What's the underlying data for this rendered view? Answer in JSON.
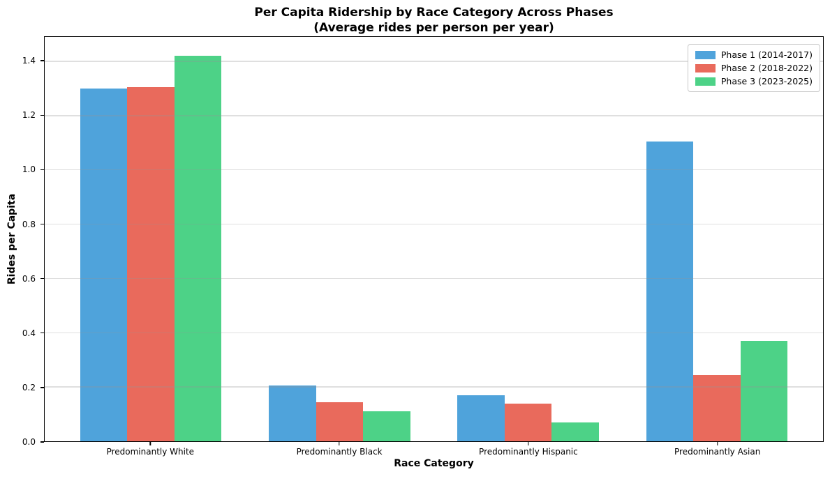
{
  "chart_data": {
    "type": "bar",
    "title": "Per Capita Ridership by Race Category Across Phases",
    "subtitle": "(Average rides per person per year)",
    "xlabel": "Race Category",
    "ylabel": "Rides per Capita",
    "categories": [
      "Predominantly White",
      "Predominantly Black",
      "Predominantly Hispanic",
      "Predominantly Asian"
    ],
    "series": [
      {
        "name": "Phase 1 (2014-2017)",
        "color": "#4fa3db",
        "values": [
          1.3,
          0.205,
          0.17,
          1.105
        ]
      },
      {
        "name": "Phase 2 (2018-2022)",
        "color": "#e96a5c",
        "values": [
          1.305,
          0.145,
          0.14,
          0.245
        ]
      },
      {
        "name": "Phase 3 (2023-2025)",
        "color": "#4dd287",
        "values": [
          1.42,
          0.11,
          0.07,
          0.37
        ]
      }
    ],
    "ylim": [
      0,
      1.49
    ],
    "yticks": [
      0.0,
      0.2,
      0.4,
      0.6,
      0.8,
      1.0,
      1.2,
      1.4
    ],
    "grid": "horizontal",
    "gridline_values": [
      0.2,
      0.4,
      0.6,
      0.8,
      1.0,
      1.2,
      1.4
    ],
    "legend_position": "upper right",
    "bar_width": 0.25
  },
  "colors": {
    "grid": "rgba(150,150,150,0.30)",
    "spine": "#000000",
    "background": "#ffffff",
    "legend_border": "#c9c9c9"
  }
}
